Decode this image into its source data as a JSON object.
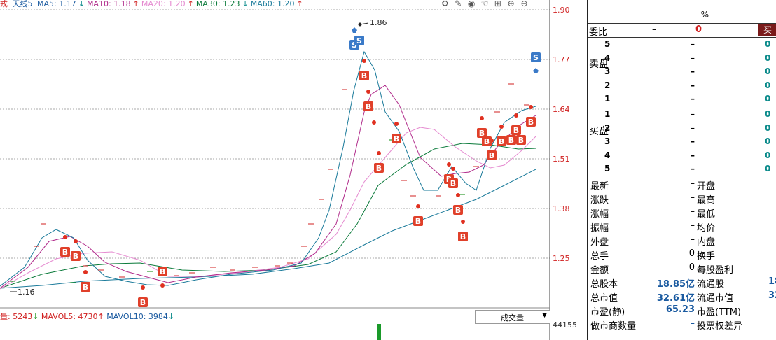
{
  "header": {
    "name": "戎",
    "cycle": "天线5",
    "ma": [
      {
        "label": "MA5: 1.17",
        "color": "#1a5aa0"
      },
      {
        "label": "MA10: 1.18",
        "color": "#b02a8a"
      },
      {
        "label": "MA20: 1.20",
        "color": "#e58ad0"
      },
      {
        "label": "MA30: 1.23",
        "color": "#0a7a3a"
      },
      {
        "label": "MA60: 1.20",
        "color": "#1a7a9a"
      }
    ]
  },
  "toolbar_icons": [
    "gear-icon",
    "pen-icon",
    "eye-icon",
    "hand-icon",
    "grid-icon",
    "zoom-in-icon",
    "zoom-out-icon"
  ],
  "price_axis": [
    "1.90",
    "1.77",
    "1.64",
    "1.51",
    "1.38",
    "1.25"
  ],
  "chart_annotations": {
    "high": "1.86",
    "low": "1.16"
  },
  "markers": {
    "buy": "B",
    "sell": "S"
  },
  "volume": {
    "label": "量: 5243",
    "mavol5": "MAVOL5: 4730",
    "mavol10": "MAVOL10: 3984",
    "dropdown": "成交量",
    "axis_value": "44155"
  },
  "quote": {
    "top_line": "——  –  –%",
    "weibi_label": "委比",
    "weibi_value": "–",
    "weibi_value2": "0",
    "buy_button": "买",
    "sell_group": "卖盘",
    "buy_group": "买盘",
    "sell_levels": [
      {
        "n": "5",
        "price": "–",
        "vol": "0"
      },
      {
        "n": "4",
        "price": "–",
        "vol": "0"
      },
      {
        "n": "3",
        "price": "–",
        "vol": "0"
      },
      {
        "n": "2",
        "price": "–",
        "vol": "0"
      },
      {
        "n": "1",
        "price": "–",
        "vol": "0"
      }
    ],
    "buy_levels": [
      {
        "n": "1",
        "price": "–",
        "vol": "0"
      },
      {
        "n": "2",
        "price": "–",
        "vol": "0"
      },
      {
        "n": "3",
        "price": "–",
        "vol": "0"
      },
      {
        "n": "4",
        "price": "–",
        "vol": "0"
      },
      {
        "n": "5",
        "price": "–",
        "vol": "0"
      }
    ],
    "stats": [
      {
        "l": "最新",
        "v": "–",
        "r": "开盘",
        "rv": ""
      },
      {
        "l": "涨跌",
        "v": "–",
        "r": "最高",
        "rv": ""
      },
      {
        "l": "涨幅",
        "v": "–",
        "r": "最低",
        "rv": ""
      },
      {
        "l": "振幅",
        "v": "–",
        "r": "均价",
        "rv": ""
      },
      {
        "l": "外盘",
        "v": "–",
        "r": "内盘",
        "rv": ""
      },
      {
        "l": "总手",
        "v": "0",
        "r": "换手",
        "rv": ""
      },
      {
        "l": "金额",
        "v": "0",
        "r": "每股盈利",
        "rv": ""
      },
      {
        "l": "总股本",
        "v": "18.85亿",
        "r": "流通股",
        "rv": "18"
      },
      {
        "l": "总市值",
        "v": "32.61亿",
        "r": "流通市值",
        "rv": "32"
      },
      {
        "l": "市盈(静)",
        "v": "65.23",
        "r": "市盈(TTM)",
        "rv": ""
      },
      {
        "l": "做市商数量",
        "v": "–",
        "r": "投票权差异",
        "rv": ""
      }
    ]
  }
}
